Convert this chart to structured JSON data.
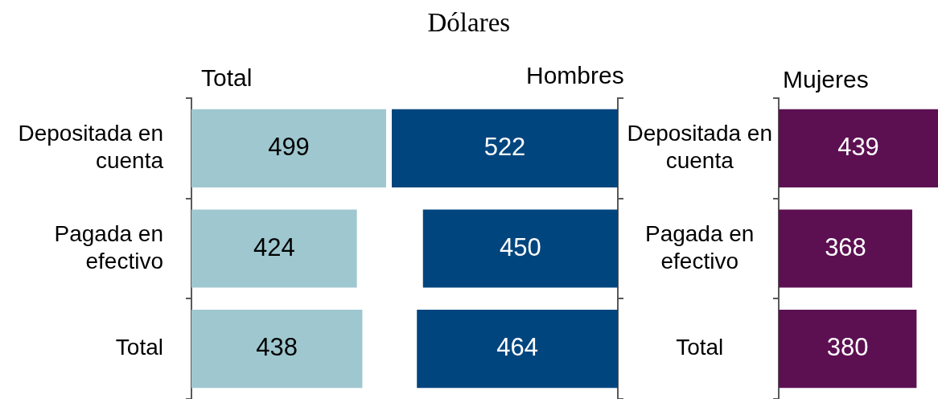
{
  "chart_data": [
    {
      "type": "bar",
      "orientation": "horizontal",
      "title": "Total",
      "categories": [
        "Depositada en cuenta",
        "Pagada en efectivo",
        "Total"
      ],
      "values": [
        499,
        424,
        438
      ],
      "color": "#9fc7cf",
      "xlim": [
        0,
        499
      ],
      "data_labels": true
    },
    {
      "type": "bar",
      "orientation": "horizontal",
      "title": "Hombres",
      "annotations": [
        "Dólares"
      ],
      "categories": [
        null,
        null,
        null
      ],
      "values": [
        522,
        450,
        464
      ],
      "color": "#00457e",
      "xlim": [
        522,
        0
      ],
      "data_labels": true
    },
    {
      "type": "bar",
      "orientation": "horizontal",
      "title": "Mujeres",
      "categories": [
        "Depositada en cuenta",
        "Pagada en efectivo",
        "Total"
      ],
      "values": [
        439,
        368,
        380
      ],
      "color": "#5c1052",
      "xlim": [
        0,
        439
      ],
      "data_labels": true
    }
  ]
}
